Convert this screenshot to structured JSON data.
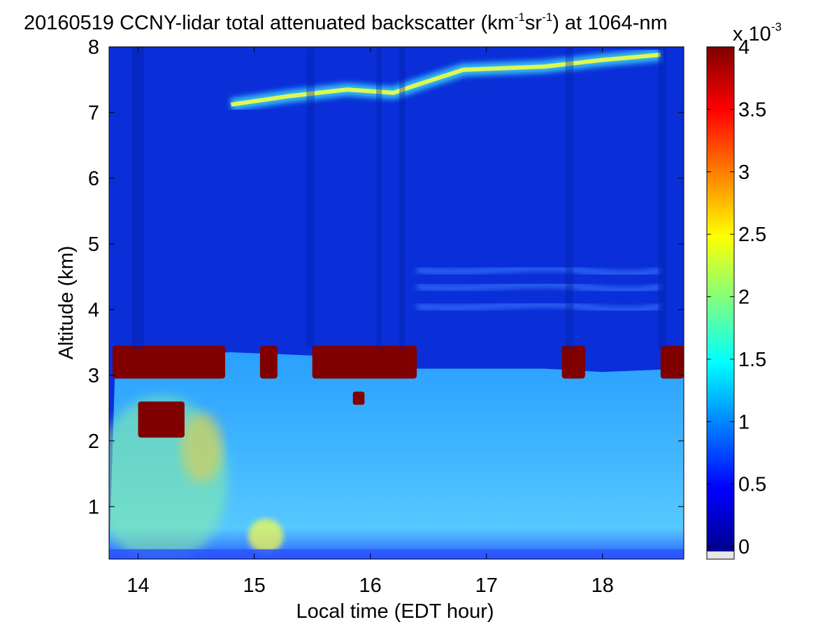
{
  "chart_data": {
    "type": "heatmap",
    "title_prefix": "20160519 CCNY-lidar total attenuated backscatter (km",
    "title_sup1": "-1",
    "title_mid": "sr",
    "title_sup2": "-1",
    "title_suffix": ") at 1064-nm",
    "xlabel": "Local time (EDT hour)",
    "ylabel": "Altitude (km)",
    "xlim": [
      13.75,
      18.7
    ],
    "ylim": [
      0.2,
      8
    ],
    "xticks": [
      14,
      15,
      16,
      17,
      18
    ],
    "yticks": [
      1,
      2,
      3,
      4,
      5,
      6,
      7,
      8
    ],
    "colormap": "jet",
    "colorbar": {
      "range": [
        -0.1,
        4
      ],
      "ticks": [
        "0",
        "0.5",
        "1",
        "1.5",
        "2",
        "2.5",
        "3",
        "3.5",
        "4"
      ],
      "tick_values": [
        0,
        0.5,
        1,
        1.5,
        2,
        2.5,
        3,
        3.5,
        4
      ],
      "exponent_base": "x 10",
      "exponent": "-3",
      "below_range_color": "#e6e6e6"
    },
    "features": {
      "cirrus_layer_km": [
        [
          14.8,
          7.12
        ],
        [
          15.3,
          7.25
        ],
        [
          15.8,
          7.35
        ],
        [
          16.2,
          7.3
        ],
        [
          16.4,
          7.42
        ],
        [
          16.8,
          7.65
        ],
        [
          17.5,
          7.7
        ],
        [
          18.0,
          7.8
        ],
        [
          18.5,
          7.88
        ]
      ],
      "boundary_layer_top_km": [
        [
          13.8,
          3.0
        ],
        [
          14.2,
          3.3
        ],
        [
          14.8,
          3.35
        ],
        [
          15.5,
          3.3
        ],
        [
          16.0,
          3.25
        ],
        [
          16.4,
          3.1
        ],
        [
          17.0,
          3.1
        ],
        [
          17.5,
          3.1
        ],
        [
          18.0,
          3.05
        ],
        [
          18.7,
          3.1
        ]
      ],
      "aerosol_layers_km": [
        4.05,
        4.35,
        4.6
      ]
    }
  }
}
